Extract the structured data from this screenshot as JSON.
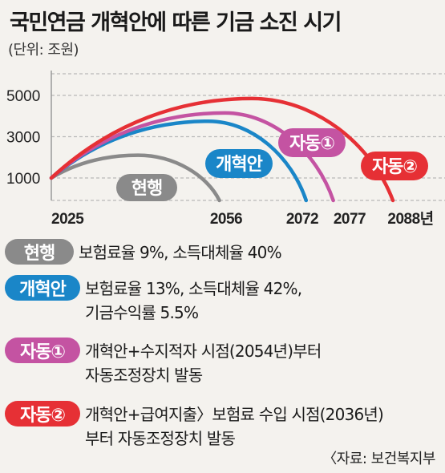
{
  "title": "국민연금 개혁안에 따른 기금 소진 시기",
  "unit": "(단위: 조원)",
  "source": "〈자료: 보건복지부",
  "chart_data": {
    "type": "line",
    "y_ticks": [
      1000,
      3000,
      5000
    ],
    "x_ticks": [
      "2025",
      "2056",
      "2072",
      "2077",
      "2088년"
    ],
    "grid": true,
    "series": [
      {
        "name": "현행",
        "color": "#8a8a8a",
        "start": 2025,
        "peak_year": 2041,
        "peak_value": 2100,
        "end": 2056
      },
      {
        "name": "개혁안",
        "color": "#1a86c8",
        "start": 2025,
        "peak_year": 2054,
        "peak_value": 3750,
        "end": 2072
      },
      {
        "name": "자동①",
        "color": "#c453a2",
        "start": 2025,
        "peak_year": 2057,
        "peak_value": 4150,
        "end": 2077
      },
      {
        "name": "자동②",
        "color": "#e63035",
        "start": 2025,
        "peak_year": 2062,
        "peak_value": 4850,
        "end": 2088
      }
    ]
  },
  "legend": [
    {
      "label": "현행",
      "color": "#8a8a8a",
      "lines": [
        "보험료율 9%, 소득대체율 40%"
      ]
    },
    {
      "label": "개혁안",
      "color": "#1a86c8",
      "lines": [
        "보험료율 13%, 소득대체율 42%,",
        "기금수익률 5.5%"
      ]
    },
    {
      "label": "자동①",
      "color": "#c453a2",
      "lines": [
        "개혁안+수지적자 시점(2054년)부터",
        "자동조정장치 발동"
      ]
    },
    {
      "label": "자동②",
      "color": "#e63035",
      "lines": [
        "개혁안+급여지출〉보험료 수입 시점(2036년)",
        "부터 자동조정장치 발동"
      ]
    }
  ]
}
